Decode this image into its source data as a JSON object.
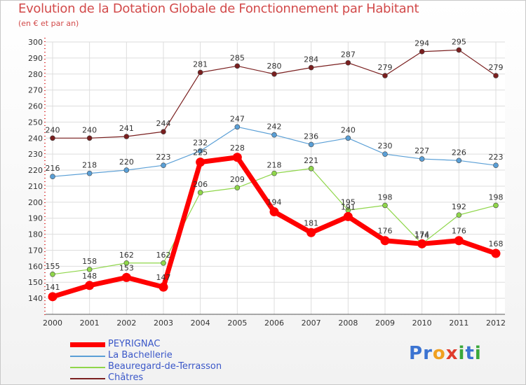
{
  "title": "Evolution de la Dotation Globale de Fonctionnement par Habitant",
  "subtitle": "(en € et par an)",
  "brand": {
    "letters": [
      "P",
      "r",
      "o",
      "x",
      "i",
      "t",
      "i"
    ],
    "colors": [
      "#3b73d1",
      "#3b73d1",
      "#f0a020",
      "#e03c2c",
      "#3aa83a",
      "#3b73d1",
      "#3aa83a"
    ]
  },
  "chart_data": {
    "type": "line",
    "title": "Evolution de la Dotation Globale de Fonctionnement par Habitant",
    "subtitle": "(en € et par an)",
    "xlabel": "",
    "ylabel": "",
    "x": [
      "2000",
      "2001",
      "2002",
      "2003",
      "2004",
      "2005",
      "2006",
      "2007",
      "2008",
      "2009",
      "2010",
      "2011",
      "2012"
    ],
    "ylim": [
      130,
      300
    ],
    "yticks": [
      140,
      150,
      160,
      170,
      180,
      190,
      200,
      210,
      220,
      230,
      240,
      250,
      260,
      270,
      280,
      290,
      300
    ],
    "legend_position": "bottom-left",
    "series": [
      {
        "name": "Châtres",
        "color": "#7a1f1f",
        "values": [
          240,
          240,
          241,
          244,
          281,
          285,
          280,
          284,
          287,
          279,
          294,
          295,
          279
        ]
      },
      {
        "name": "La Bachellerie",
        "color": "#5a9fd6",
        "values": [
          216,
          218,
          220,
          223,
          232,
          247,
          242,
          236,
          240,
          230,
          227,
          226,
          223
        ]
      },
      {
        "name": "Beauregard-de-Terrasson",
        "color": "#8fd64a",
        "values": [
          155,
          158,
          162,
          162,
          206,
          209,
          218,
          221,
          195,
          198,
          174,
          192,
          198
        ]
      },
      {
        "name": "PEYRIGNAC",
        "color": "#ff0000",
        "values": [
          141,
          148,
          153,
          147,
          225,
          228,
          194,
          181,
          191,
          176,
          174,
          176,
          168
        ]
      }
    ],
    "legend": [
      "PEYRIGNAC",
      "La Bachellerie",
      "Beauregard-de-Terrasson",
      "Châtres"
    ]
  }
}
